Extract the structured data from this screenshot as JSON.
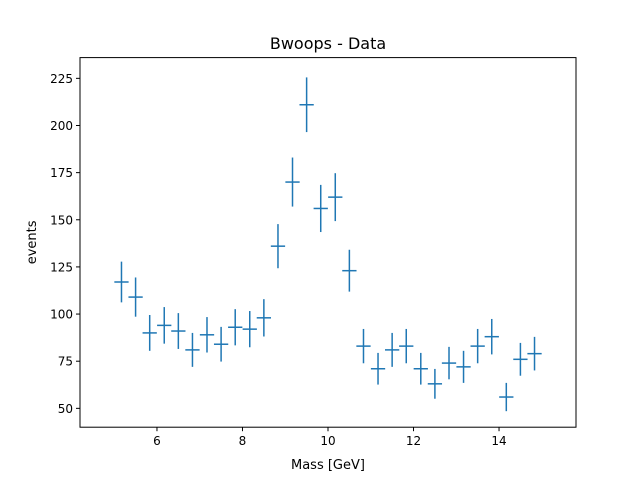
{
  "chart_data": {
    "type": "scatter",
    "style": "errorbar",
    "title": "Bwoops - Data",
    "xlabel": "Mass [GeV]",
    "ylabel": "events",
    "xlim": [
      4.2,
      15.8
    ],
    "ylim": [
      40,
      236
    ],
    "xticks": [
      6,
      8,
      10,
      12,
      14
    ],
    "yticks": [
      50,
      75,
      100,
      125,
      150,
      175,
      200,
      225
    ],
    "grid": false,
    "legend": "none",
    "color": "#1f77b4",
    "x_half_width": 0.167,
    "series": [
      {
        "x": [
          5.17,
          5.5,
          5.83,
          6.17,
          6.5,
          6.83,
          7.17,
          7.5,
          7.83,
          8.17,
          8.5,
          8.83,
          9.17,
          9.5,
          9.83,
          10.17,
          10.5,
          10.83,
          11.17,
          11.5,
          11.83,
          12.17,
          12.5,
          12.83,
          13.17,
          13.5,
          13.83,
          14.17,
          14.5,
          14.83
        ],
        "y": [
          117,
          109,
          90,
          94,
          91,
          81,
          89,
          84,
          93,
          92,
          98,
          136,
          170,
          211,
          156,
          162,
          123,
          83,
          71,
          81,
          83,
          71,
          63,
          74,
          72,
          83,
          88,
          56,
          76,
          79
        ],
        "yerr": [
          10.8,
          10.4,
          9.5,
          9.7,
          9.5,
          9.0,
          9.4,
          9.2,
          9.6,
          9.6,
          9.9,
          11.7,
          13.0,
          14.5,
          12.5,
          12.7,
          11.1,
          9.1,
          8.4,
          9.0,
          9.1,
          8.4,
          7.9,
          8.6,
          8.5,
          9.1,
          9.4,
          7.5,
          8.7,
          8.9
        ]
      }
    ]
  }
}
